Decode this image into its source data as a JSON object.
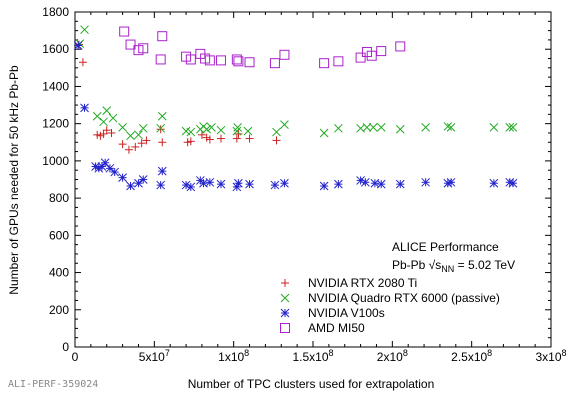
{
  "chart_data": {
    "type": "scatter",
    "title": "",
    "xlabel": "Number of TPC clusters used for extrapolation",
    "ylabel": "Number of GPUs needed for 50 kHz Pb-Pb",
    "xlim": [
      0,
      300000000
    ],
    "ylim": [
      0,
      1800
    ],
    "grid": false,
    "legend_position": "bottom-right",
    "x_tick_labels": [
      "0",
      "5x10^7",
      "1x10^8",
      "1.5x10^8",
      "2x10^8",
      "2.5x10^8",
      "3x10^8"
    ],
    "y_tick_labels": [
      "0",
      "200",
      "400",
      "600",
      "800",
      "1000",
      "1200",
      "1400",
      "1600",
      "1800"
    ],
    "annotation": {
      "line1": "ALICE Performance",
      "line2_prefix": "Pb-Pb √s",
      "line2_sub": "NN",
      "line2_suffix": " = 5.02 TeV"
    },
    "watermark": "ALI-PERF-359024",
    "series": [
      {
        "name": "NVIDIA RTX 2080 Ti",
        "marker": "plus",
        "color": "#cc2222",
        "points": [
          [
            2500000,
            1625
          ],
          [
            5000000,
            1530
          ],
          [
            14000000,
            1140
          ],
          [
            16000000,
            1135
          ],
          [
            18000000,
            1145
          ],
          [
            20000000,
            1165
          ],
          [
            23000000,
            1150
          ],
          [
            30000000,
            1090
          ],
          [
            34000000,
            1060
          ],
          [
            38000000,
            1075
          ],
          [
            42000000,
            1095
          ],
          [
            45000000,
            1110
          ],
          [
            54000000,
            1170
          ],
          [
            55000000,
            1100
          ],
          [
            71000000,
            1100
          ],
          [
            73000000,
            1105
          ],
          [
            80000000,
            1140
          ],
          [
            83000000,
            1125
          ],
          [
            85000000,
            1115
          ],
          [
            92000000,
            1120
          ],
          [
            102000000,
            1120
          ],
          [
            103000000,
            1145
          ],
          [
            110000000,
            1120
          ],
          [
            127000000,
            1110
          ]
        ]
      },
      {
        "name": "NVIDIA Quadro RTX 6000 (passive)",
        "marker": "cross",
        "color": "#22aa22",
        "points": [
          [
            3000000,
            1630
          ],
          [
            6000000,
            1705
          ],
          [
            14000000,
            1240
          ],
          [
            18000000,
            1210
          ],
          [
            20000000,
            1270
          ],
          [
            24000000,
            1230
          ],
          [
            30000000,
            1180
          ],
          [
            35000000,
            1135
          ],
          [
            40000000,
            1140
          ],
          [
            43000000,
            1175
          ],
          [
            54000000,
            1175
          ],
          [
            55000000,
            1240
          ],
          [
            70000000,
            1160
          ],
          [
            73000000,
            1155
          ],
          [
            79000000,
            1170
          ],
          [
            81000000,
            1185
          ],
          [
            83000000,
            1170
          ],
          [
            86000000,
            1180
          ],
          [
            92000000,
            1165
          ],
          [
            102000000,
            1160
          ],
          [
            102500000,
            1180
          ],
          [
            109000000,
            1160
          ],
          [
            127000000,
            1155
          ],
          [
            132000000,
            1195
          ],
          [
            157000000,
            1150
          ],
          [
            166000000,
            1175
          ],
          [
            180000000,
            1175
          ],
          [
            184000000,
            1180
          ],
          [
            188000000,
            1180
          ],
          [
            193000000,
            1180
          ],
          [
            205000000,
            1170
          ],
          [
            221000000,
            1180
          ],
          [
            235000000,
            1185
          ],
          [
            237000000,
            1180
          ],
          [
            264000000,
            1180
          ],
          [
            274000000,
            1180
          ],
          [
            276000000,
            1180
          ]
        ]
      },
      {
        "name": "NVIDIA V100s",
        "marker": "star",
        "color": "#2222cc",
        "points": [
          [
            2000000,
            1620
          ],
          [
            6000000,
            1285
          ],
          [
            13000000,
            970
          ],
          [
            15000000,
            960
          ],
          [
            17000000,
            970
          ],
          [
            19000000,
            990
          ],
          [
            22000000,
            960
          ],
          [
            25000000,
            940
          ],
          [
            30000000,
            910
          ],
          [
            35000000,
            865
          ],
          [
            40000000,
            880
          ],
          [
            43000000,
            900
          ],
          [
            54000000,
            870
          ],
          [
            55000000,
            945
          ],
          [
            70000000,
            870
          ],
          [
            73000000,
            860
          ],
          [
            79000000,
            895
          ],
          [
            81000000,
            880
          ],
          [
            85000000,
            885
          ],
          [
            92000000,
            875
          ],
          [
            102000000,
            860
          ],
          [
            103000000,
            880
          ],
          [
            110000000,
            875
          ],
          [
            126000000,
            870
          ],
          [
            132000000,
            880
          ],
          [
            157000000,
            865
          ],
          [
            166000000,
            875
          ],
          [
            180000000,
            895
          ],
          [
            183000000,
            885
          ],
          [
            189000000,
            880
          ],
          [
            193000000,
            875
          ],
          [
            205000000,
            875
          ],
          [
            221000000,
            885
          ],
          [
            235000000,
            880
          ],
          [
            237000000,
            885
          ],
          [
            264000000,
            880
          ],
          [
            274000000,
            885
          ],
          [
            276000000,
            880
          ]
        ]
      },
      {
        "name": "AMD MI50",
        "marker": "square",
        "color": "#aa22cc",
        "points": [
          [
            31000000,
            1695
          ],
          [
            35000000,
            1625
          ],
          [
            40000000,
            1595
          ],
          [
            43000000,
            1605
          ],
          [
            54000000,
            1545
          ],
          [
            55000000,
            1670
          ],
          [
            70000000,
            1560
          ],
          [
            73000000,
            1545
          ],
          [
            79000000,
            1575
          ],
          [
            82000000,
            1550
          ],
          [
            85000000,
            1540
          ],
          [
            92000000,
            1540
          ],
          [
            102000000,
            1545
          ],
          [
            103000000,
            1535
          ],
          [
            110000000,
            1530
          ],
          [
            126000000,
            1525
          ],
          [
            132000000,
            1570
          ],
          [
            157000000,
            1525
          ],
          [
            166000000,
            1535
          ],
          [
            180000000,
            1555
          ],
          [
            184000000,
            1585
          ],
          [
            187000000,
            1565
          ],
          [
            193000000,
            1590
          ],
          [
            205000000,
            1615
          ]
        ]
      }
    ]
  }
}
